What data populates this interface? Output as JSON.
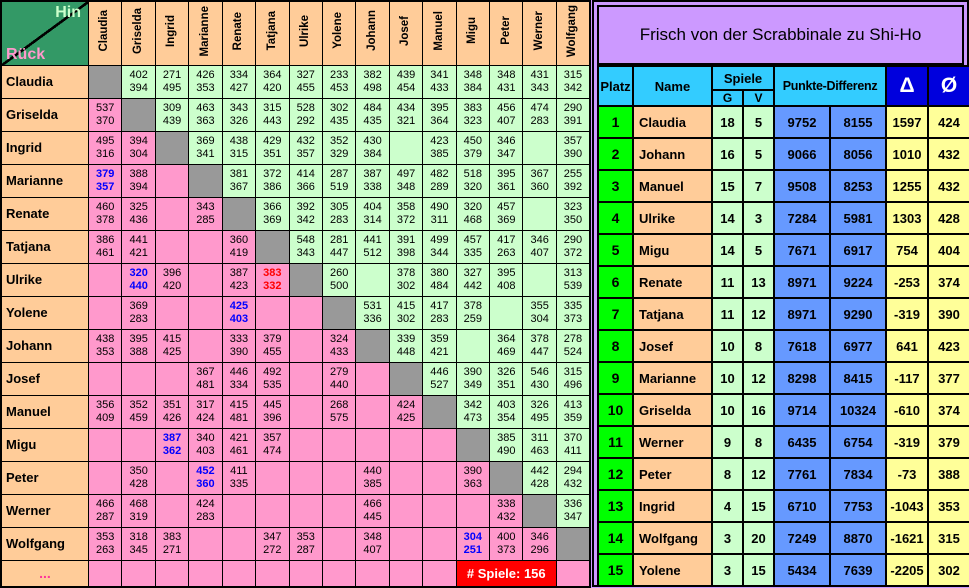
{
  "crosstable": {
    "corner": {
      "hin": "Hin",
      "rueck": "Rück"
    },
    "players": [
      "Claudia",
      "Griselda",
      "Ingrid",
      "Marianne",
      "Renate",
      "Tatjana",
      "Ulrike",
      "Yolene",
      "Johann",
      "Josef",
      "Manuel",
      "Migu",
      "Peter",
      "Werner",
      "Wolfgang"
    ],
    "rows": [
      {
        "name": "Claudia",
        "cells": [
          "#",
          "402|394",
          "271|495",
          "426|353",
          "334|427",
          "364|420",
          "327|455",
          "233|453",
          "382|498",
          "439|454",
          "341|433",
          "348|384",
          "348|431",
          "431|343",
          "315|342"
        ]
      },
      {
        "name": "Griselda",
        "cells": [
          "537|370",
          "#",
          "309|439",
          "463|363",
          "343|326",
          "315|443",
          "528|292",
          "302|435",
          "484|435",
          "434|321",
          "395|364",
          "383|323",
          "456|407",
          "474|283",
          "290|391"
        ]
      },
      {
        "name": "Ingrid",
        "cells": [
          "495|316",
          "394|304",
          "#",
          "369|341",
          "438|315",
          "429|351",
          "432|357",
          "352|329",
          "430|384",
          "",
          "423|385",
          "450|379",
          "346|347",
          "",
          "357|390"
        ]
      },
      {
        "name": "Marianne",
        "cells": [
          "b:379|357",
          "388|394",
          "",
          "#",
          "381|367",
          "372|386",
          "414|366",
          "287|519",
          "387|338",
          "497|348",
          "482|289",
          "518|320",
          "395|361",
          "367|360",
          "255|392"
        ]
      },
      {
        "name": "Renate",
        "cells": [
          "460|378",
          "325|436",
          "",
          "343|285",
          "#",
          "366|369",
          "392|342",
          "305|283",
          "404|314",
          "358|372",
          "490|311",
          "320|468",
          "457|369",
          "",
          "323|350"
        ]
      },
      {
        "name": "Tatjana",
        "cells": [
          "386|461",
          "441|421",
          "",
          "",
          "360|419",
          "#",
          "548|343",
          "281|447",
          "441|512",
          "391|398",
          "499|344",
          "457|335",
          "417|263",
          "346|407",
          "290|372"
        ]
      },
      {
        "name": "Ulrike",
        "cells": [
          "",
          "b:320|440",
          "396|420",
          "",
          "387|423",
          "x:383|332",
          "#",
          "260|500",
          "",
          "378|302",
          "380|484",
          "327|442",
          "395|408",
          "",
          "313|539"
        ]
      },
      {
        "name": "Yolene",
        "cells": [
          "",
          "369|283",
          "",
          "",
          "b:425|403",
          "",
          "",
          "#",
          "531|336",
          "415|302",
          "417|283",
          "378|259",
          "",
          "355|304",
          "335|373"
        ]
      },
      {
        "name": "Johann",
        "cells": [
          "438|353",
          "395|388",
          "415|425",
          "",
          "333|390",
          "379|455",
          "",
          "324|433",
          "#",
          "339|448",
          "359|421",
          "",
          "364|469",
          "378|447",
          "278|524"
        ]
      },
      {
        "name": "Josef",
        "cells": [
          "",
          "",
          "",
          "367|481",
          "446|334",
          "492|535",
          "",
          "279|440",
          "",
          "#",
          "446|527",
          "390|349",
          "326|351",
          "546|430",
          "315|496"
        ]
      },
      {
        "name": "Manuel",
        "cells": [
          "356|409",
          "352|459",
          "351|426",
          "317|424",
          "415|481",
          "445|396",
          "",
          "268|575",
          "",
          "424|425",
          "#",
          "342|473",
          "403|354",
          "326|495",
          "413|359"
        ]
      },
      {
        "name": "Migu",
        "cells": [
          "",
          "",
          "b:387|362",
          "340|403",
          "421|461",
          "357|474",
          "",
          "",
          "",
          "",
          "",
          "#",
          "385|490",
          "311|463",
          "370|411"
        ]
      },
      {
        "name": "Peter",
        "cells": [
          "",
          "350|428",
          "",
          "b:452|360",
          "411|335",
          "",
          "",
          "",
          "440|385",
          "",
          "",
          "390|363",
          "#",
          "442|428",
          "294|432"
        ]
      },
      {
        "name": "Werner",
        "cells": [
          "466|287",
          "468|319",
          "",
          "424|283",
          "",
          "",
          "",
          "",
          "466|445",
          "",
          "",
          "",
          "338|432",
          "#",
          "336|347"
        ]
      },
      {
        "name": "Wolfgang",
        "cells": [
          "353|263",
          "318|345",
          "383|271",
          "",
          "",
          "347|272",
          "353|287",
          "",
          "348|407",
          "",
          "",
          "b:304|251",
          "400|373",
          "346|296",
          "#"
        ]
      }
    ],
    "ellipsis_label": "...",
    "badge": {
      "label": "# Spiele:",
      "value": "156"
    }
  },
  "panel": {
    "title": "Frisch von der Scrabbinale zu Shi-Ho",
    "headers": {
      "platz": "Platz",
      "name": "Name",
      "spiele": "Spiele",
      "g": "G",
      "v": "V",
      "punkte": "Punkte-Differenz",
      "delta": "Δ",
      "avg": "Ø"
    },
    "standings": [
      {
        "platz": "1",
        "name": "Claudia",
        "g": "18",
        "v": "5",
        "plus": "9752",
        "minus": "8155",
        "delta": "1597",
        "avg": "424"
      },
      {
        "platz": "2",
        "name": "Johann",
        "g": "16",
        "v": "5",
        "plus": "9066",
        "minus": "8056",
        "delta": "1010",
        "avg": "432"
      },
      {
        "platz": "3",
        "name": "Manuel",
        "g": "15",
        "v": "7",
        "plus": "9508",
        "minus": "8253",
        "delta": "1255",
        "avg": "432"
      },
      {
        "platz": "4",
        "name": "Ulrike",
        "g": "14",
        "v": "3",
        "plus": "7284",
        "minus": "5981",
        "delta": "1303",
        "avg": "428"
      },
      {
        "platz": "5",
        "name": "Migu",
        "g": "14",
        "v": "5",
        "plus": "7671",
        "minus": "6917",
        "delta": "754",
        "avg": "404"
      },
      {
        "platz": "6",
        "name": "Renate",
        "g": "11",
        "v": "13",
        "plus": "8971",
        "minus": "9224",
        "delta": "-253",
        "avg": "374"
      },
      {
        "platz": "7",
        "name": "Tatjana",
        "g": "11",
        "v": "12",
        "plus": "8971",
        "minus": "9290",
        "delta": "-319",
        "avg": "390"
      },
      {
        "platz": "8",
        "name": "Josef",
        "g": "10",
        "v": "8",
        "plus": "7618",
        "minus": "6977",
        "delta": "641",
        "avg": "423"
      },
      {
        "platz": "9",
        "name": "Marianne",
        "g": "10",
        "v": "12",
        "plus": "8298",
        "minus": "8415",
        "delta": "-117",
        "avg": "377"
      },
      {
        "platz": "10",
        "name": "Griselda",
        "g": "10",
        "v": "16",
        "plus": "9714",
        "minus": "10324",
        "delta": "-610",
        "avg": "374"
      },
      {
        "platz": "11",
        "name": "Werner",
        "g": "9",
        "v": "8",
        "plus": "6435",
        "minus": "6754",
        "delta": "-319",
        "avg": "379"
      },
      {
        "platz": "12",
        "name": "Peter",
        "g": "8",
        "v": "12",
        "plus": "7761",
        "minus": "7834",
        "delta": "-73",
        "avg": "388"
      },
      {
        "platz": "13",
        "name": "Ingrid",
        "g": "4",
        "v": "15",
        "plus": "6710",
        "minus": "7753",
        "delta": "-1043",
        "avg": "353"
      },
      {
        "platz": "14",
        "name": "Wolfgang",
        "g": "3",
        "v": "20",
        "plus": "7249",
        "minus": "8870",
        "delta": "-1621",
        "avg": "315"
      },
      {
        "platz": "15",
        "name": "Yolene",
        "g": "3",
        "v": "15",
        "plus": "5434",
        "minus": "7639",
        "delta": "-2205",
        "avg": "302"
      }
    ]
  },
  "colors": {
    "upper_triangle": "#CCFFCC",
    "lower_triangle": "#FF99CC",
    "diagonal": "#999999",
    "label_bg": "#FFCC99",
    "corner_green": "#339966",
    "lavender": "#CC99FF",
    "header_cyan": "#33CCFF",
    "header_blue": "#0000DD",
    "platz_green": "#00FF00",
    "punkte_blue": "#6699FF",
    "delta_yellow": "#FFFF99",
    "badge_red": "#FF0000",
    "blue_score": "#0000FF",
    "red_score": "#FF0000"
  }
}
